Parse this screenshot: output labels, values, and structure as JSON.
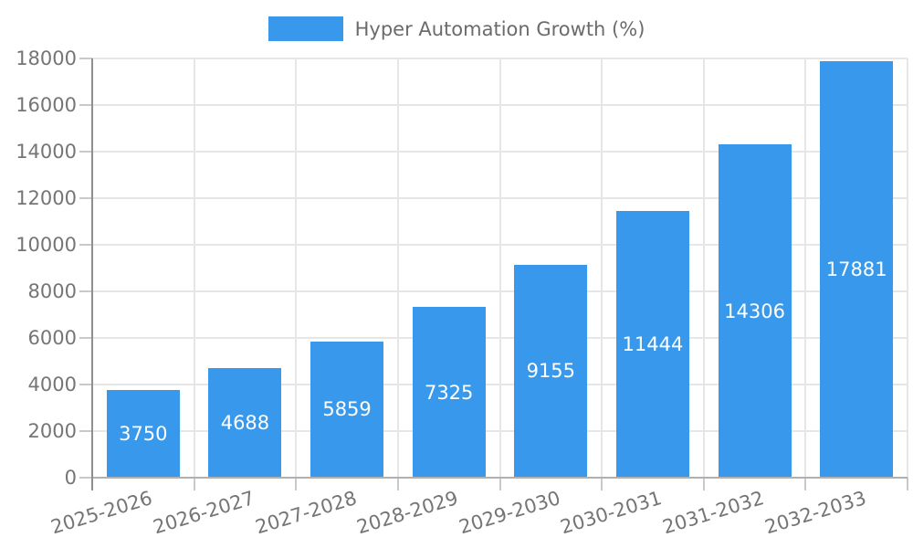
{
  "chart_data": {
    "type": "bar",
    "legend_label": "Hyper Automation Growth (%)",
    "legend_position": "top",
    "categories": [
      "2025-2026",
      "2026-2027",
      "2027-2028",
      "2028-2029",
      "2029-2030",
      "2030-2031",
      "2031-2032",
      "2032-2033"
    ],
    "values": [
      3750,
      4688,
      5859,
      7325,
      9155,
      11444,
      14306,
      17881
    ],
    "ylim": [
      0,
      18000
    ],
    "yticks": [
      0,
      2000,
      4000,
      6000,
      8000,
      10000,
      12000,
      14000,
      16000,
      18000
    ],
    "grid": true,
    "bar_color": "#3899EC",
    "value_label_color": "#ffffff",
    "axis_label_color": "#757575",
    "legend_label_color": "#6b6b6b",
    "gridline_color": "#e6e6e6"
  }
}
